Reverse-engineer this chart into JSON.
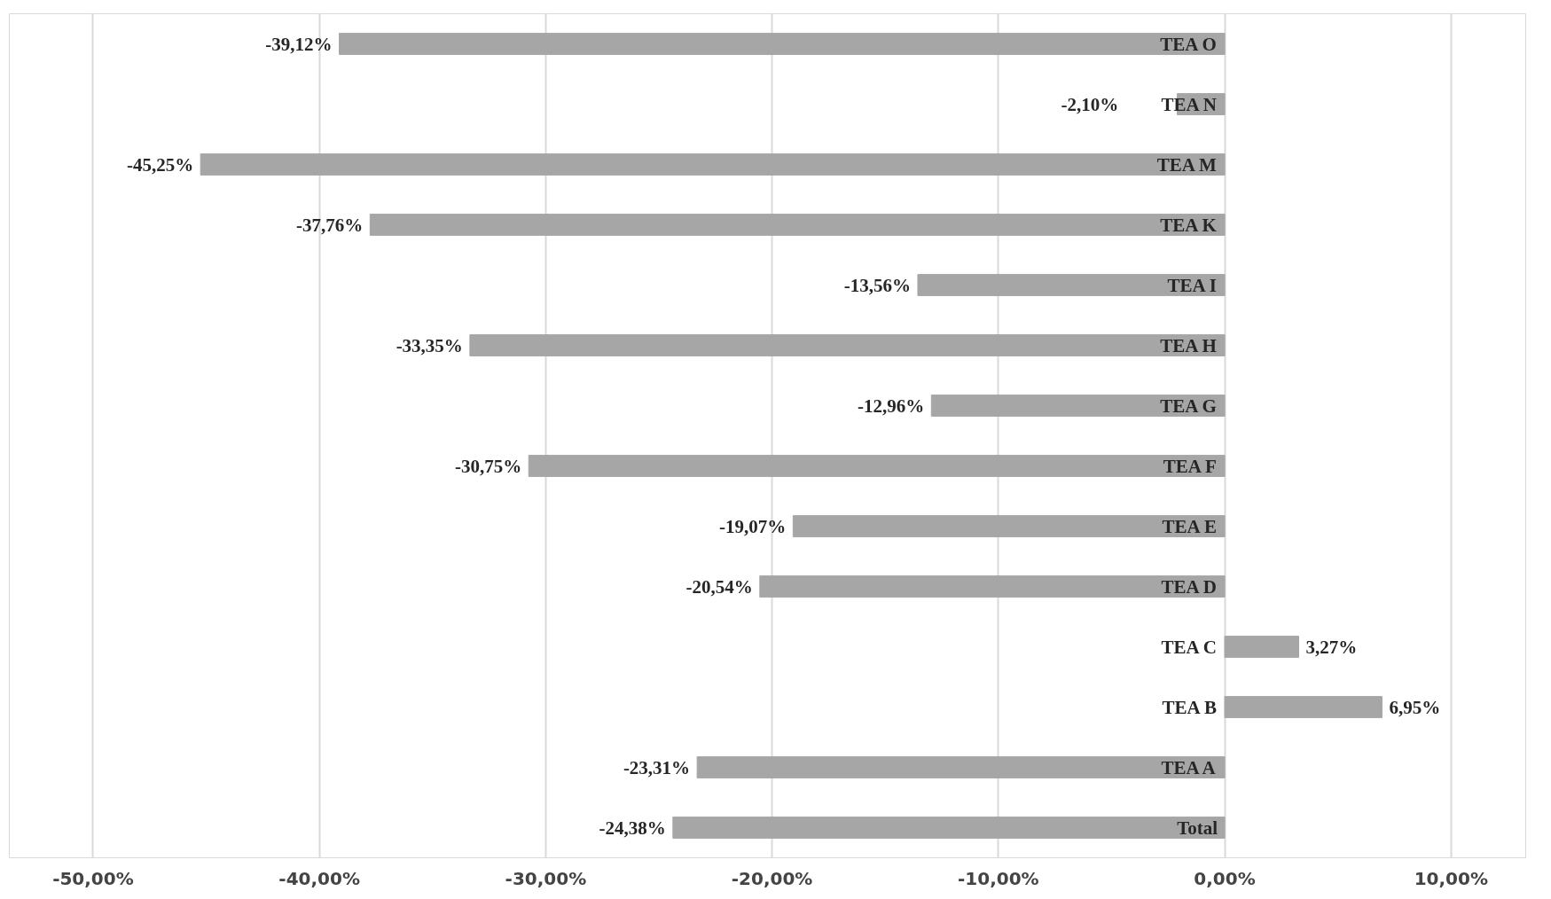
{
  "chart_data": {
    "type": "bar",
    "orientation": "horizontal",
    "categories": [
      "TEA O",
      "TEA N",
      "TEA M",
      "TEA K",
      "TEA I",
      "TEA H",
      "TEA G",
      "TEA F",
      "TEA E",
      "TEA D",
      "TEA C",
      "TEA B",
      "TEA A",
      "Total"
    ],
    "values": [
      -39.12,
      -2.1,
      -45.25,
      -37.76,
      -13.56,
      -33.35,
      -12.96,
      -30.75,
      -19.07,
      -20.54,
      3.27,
      6.95,
      -23.31,
      -24.38
    ],
    "value_labels": [
      "-39,12%",
      "-2,10%",
      "-45,25%",
      "-37,76%",
      "-13,56%",
      "-33,35%",
      "-12,96%",
      "-30,75%",
      "-19,07%",
      "-20,54%",
      "3,27%",
      "6,95%",
      "-23,31%",
      "-24,38%"
    ],
    "color": "#a6a6a6",
    "xlim": [
      -53.7,
      13.3
    ],
    "xticks": [
      {
        "value": -50,
        "label": "-50,00%"
      },
      {
        "value": -40,
        "label": "-40,00%"
      },
      {
        "value": -30,
        "label": "-30,00%"
      },
      {
        "value": -20,
        "label": "-20,00%"
      },
      {
        "value": -10,
        "label": "-10,00%"
      },
      {
        "value": 0,
        "label": "0,00%"
      },
      {
        "value": 10,
        "label": "10,00%"
      }
    ],
    "grid": "x"
  }
}
